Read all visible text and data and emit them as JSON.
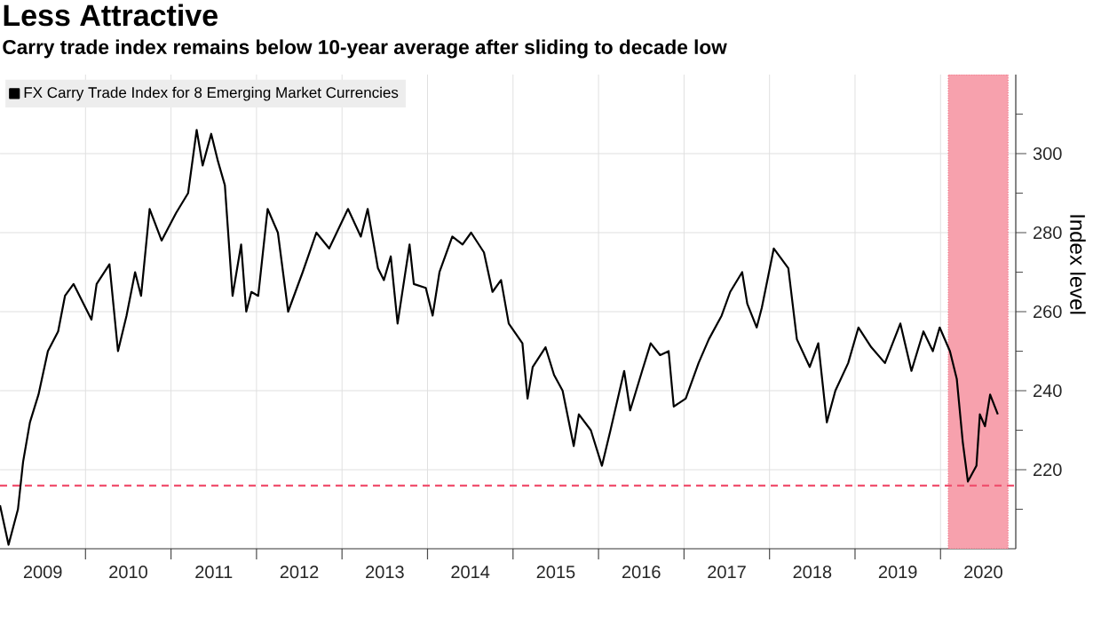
{
  "chart_data": {
    "type": "line",
    "title": "Less Attractive",
    "subtitle": "Carry trade index remains below 10-year average after sliding to decade low",
    "ylabel": "Index level",
    "series": [
      {
        "name": "FX Carry Trade Index for 8 Emerging Market Currencies",
        "color": "#000000",
        "x": [
          2009.0,
          2009.1,
          2009.21,
          2009.27,
          2009.35,
          2009.45,
          2009.56,
          2009.68,
          2009.76,
          2009.86,
          2010.07,
          2010.13,
          2010.28,
          2010.38,
          2010.48,
          2010.58,
          2010.65,
          2010.75,
          2010.89,
          2011.06,
          2011.2,
          2011.3,
          2011.37,
          2011.47,
          2011.55,
          2011.63,
          2011.72,
          2011.82,
          2011.88,
          2011.94,
          2012.02,
          2012.13,
          2012.25,
          2012.37,
          2012.54,
          2012.7,
          2012.85,
          2013.07,
          2013.22,
          2013.3,
          2013.42,
          2013.49,
          2013.57,
          2013.65,
          2013.79,
          2013.84,
          2013.98,
          2014.06,
          2014.14,
          2014.29,
          2014.41,
          2014.51,
          2014.66,
          2014.76,
          2014.86,
          2014.95,
          2015.11,
          2015.17,
          2015.23,
          2015.38,
          2015.48,
          2015.58,
          2015.71,
          2015.77,
          2015.91,
          2016.04,
          2016.14,
          2016.3,
          2016.37,
          2016.51,
          2016.61,
          2016.72,
          2016.82,
          2016.88,
          2017.02,
          2017.17,
          2017.29,
          2017.44,
          2017.54,
          2017.68,
          2017.74,
          2017.85,
          2017.91,
          2018.05,
          2018.22,
          2018.32,
          2018.47,
          2018.57,
          2018.67,
          2018.77,
          2018.92,
          2019.04,
          2019.19,
          2019.35,
          2019.53,
          2019.66,
          2019.8,
          2019.91,
          2019.99,
          2020.11,
          2020.19,
          2020.26,
          2020.32,
          2020.42,
          2020.46,
          2020.52,
          2020.58,
          2020.67
        ],
        "values": [
          211,
          201,
          210,
          222,
          232,
          239,
          250,
          255,
          264,
          267,
          258,
          267,
          272,
          250,
          259,
          270,
          264,
          286,
          278,
          285,
          290,
          306,
          297,
          305,
          298,
          292,
          264,
          277,
          260,
          265,
          264,
          286,
          280,
          260,
          270,
          280,
          276,
          286,
          279,
          286,
          271,
          268,
          274,
          257,
          277,
          267,
          266,
          259,
          270,
          279,
          277,
          280,
          275,
          265,
          268,
          257,
          252,
          238,
          246,
          251,
          244,
          240,
          226,
          234,
          230,
          221,
          230,
          245,
          235,
          245,
          252,
          249,
          250,
          236,
          238,
          247,
          253,
          259,
          265,
          270,
          262,
          256,
          261,
          276,
          271,
          253,
          246,
          252,
          232,
          240,
          247,
          256,
          251,
          247,
          257,
          245,
          255,
          250,
          256,
          250,
          243,
          227,
          217,
          221,
          234,
          231,
          239,
          234
        ]
      }
    ],
    "xlim": [
      2009,
      2020.88
    ],
    "ylim": [
      200,
      320
    ],
    "xticks": [
      {
        "value": 2010,
        "label": null
      },
      {
        "value": 2011,
        "label": null
      },
      {
        "value": 2012,
        "label": null
      },
      {
        "value": 2013,
        "label": null
      },
      {
        "value": 2014,
        "label": null
      },
      {
        "value": 2015,
        "label": null
      },
      {
        "value": 2016,
        "label": null
      },
      {
        "value": 2017,
        "label": null
      },
      {
        "value": 2018,
        "label": null
      },
      {
        "value": 2019,
        "label": null
      },
      {
        "value": 2020,
        "label": null
      },
      {
        "value": 2009.5,
        "label": "2009"
      },
      {
        "value": 2010.5,
        "label": "2010"
      },
      {
        "value": 2011.5,
        "label": "2011"
      },
      {
        "value": 2012.5,
        "label": "2012"
      },
      {
        "value": 2013.5,
        "label": "2013"
      },
      {
        "value": 2014.5,
        "label": "2014"
      },
      {
        "value": 2015.5,
        "label": "2015"
      },
      {
        "value": 2016.5,
        "label": "2016"
      },
      {
        "value": 2017.5,
        "label": "2017"
      },
      {
        "value": 2018.5,
        "label": "2018"
      },
      {
        "value": 2019.5,
        "label": "2019"
      },
      {
        "value": 2020.5,
        "label": "2020"
      }
    ],
    "yticks": [
      220,
      240,
      260,
      280,
      300,
      {
        "value": 210,
        "label": null
      },
      {
        "value": 230,
        "label": null
      },
      {
        "value": 250,
        "label": null
      },
      {
        "value": 270,
        "label": null
      },
      {
        "value": 290,
        "label": null
      },
      {
        "value": 310,
        "label": null
      }
    ],
    "ref_lines": [
      {
        "axis": "y",
        "value": 216,
        "color": "#f0506e",
        "line_style": "dashed"
      }
    ],
    "bands": [
      {
        "axis": "x",
        "from": 2020.09,
        "to": 2020.79,
        "color": "#f7a1ad"
      }
    ],
    "grid": true,
    "legend": "top left",
    "marker": "none",
    "line_style": "solid"
  }
}
